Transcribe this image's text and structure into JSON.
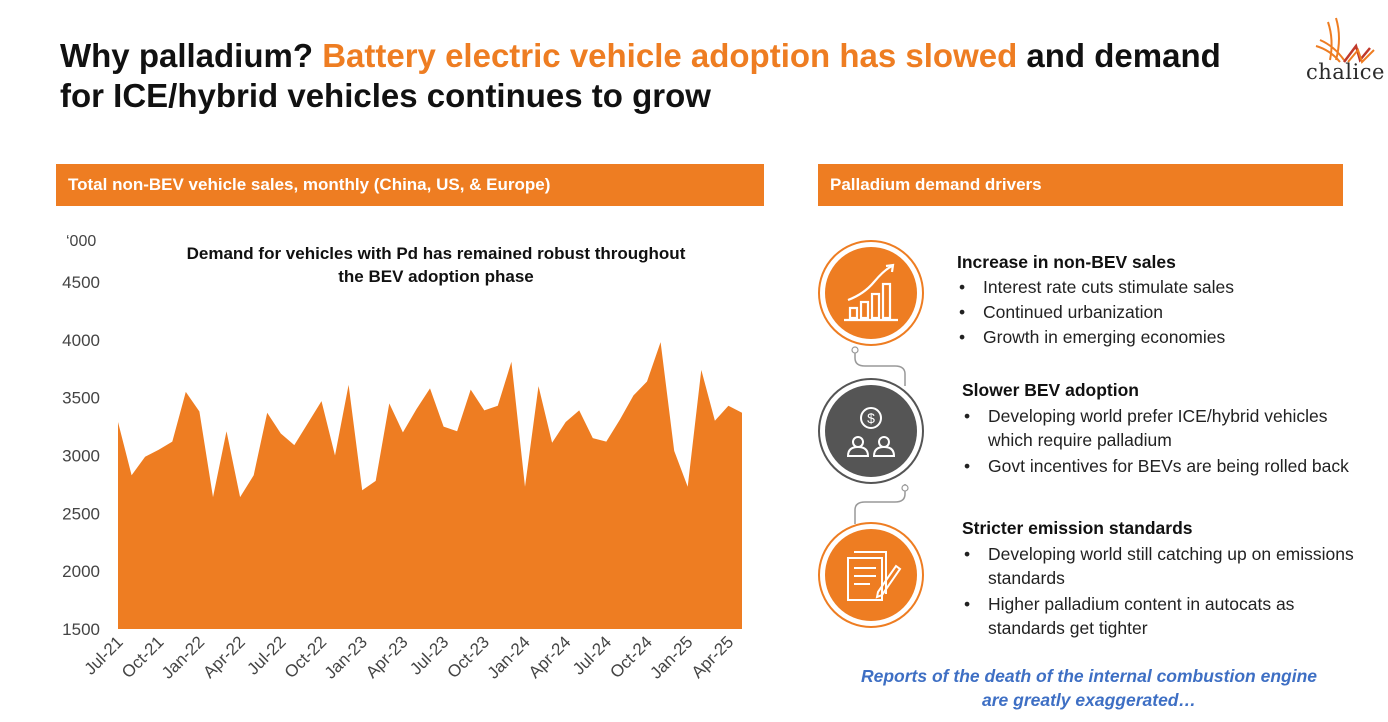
{
  "title": {
    "part1": "Why palladium? ",
    "highlight": "Battery electric vehicle adoption has slowed",
    "part2": " and demand for ICE/hybrid vehicles continues to grow"
  },
  "logo": {
    "text": "chalice"
  },
  "colors": {
    "accent": "#EE7D22",
    "dark_circle": "#555555",
    "tagline": "#3E6FC4"
  },
  "chart_header": "Total non-BEV vehicle sales, monthly (China, US, & Europe)",
  "drivers_header": "Palladium demand drivers",
  "chart_data": {
    "type": "area",
    "title": "Total non-BEV vehicle sales, monthly (China, US, & Europe)",
    "unit_label": "‘000",
    "annotation": "Demand for vehicles with Pd has remained robust throughout the BEV adoption phase",
    "ylim": [
      1500,
      4500
    ],
    "yticks": [
      "1500",
      "2000",
      "2500",
      "3000",
      "3500",
      "4000",
      "4500"
    ],
    "xtick_labels": [
      "Jul-21",
      "Oct-21",
      "Jan-22",
      "Apr-22",
      "Jul-22",
      "Oct-22",
      "Jan-23",
      "Apr-23",
      "Jul-23",
      "Oct-23",
      "Jan-24",
      "Apr-24",
      "Jul-24",
      "Oct-24",
      "Jan-25",
      "Apr-25"
    ],
    "xtick_every": 3,
    "grid": false,
    "legend": "none",
    "series": [
      {
        "name": "Non-BEV vehicle sales",
        "start": "Jul-21",
        "values": [
          3290,
          2830,
          2990,
          3050,
          3120,
          3550,
          3380,
          2640,
          3210,
          2640,
          2830,
          3370,
          3190,
          3090,
          3280,
          3470,
          3000,
          3610,
          2700,
          2780,
          3450,
          3200,
          3400,
          3580,
          3250,
          3210,
          3570,
          3390,
          3430,
          3810,
          2730,
          3600,
          3110,
          3290,
          3390,
          3150,
          3120,
          3310,
          3520,
          3640,
          3980,
          3040,
          2730,
          3740,
          3300,
          3430,
          3370
        ]
      }
    ]
  },
  "drivers": [
    {
      "icon": "growth-chart-icon",
      "heading": "Increase in non-BEV sales",
      "bullets": [
        "Interest rate cuts stimulate sales",
        "Continued urbanization",
        "Growth in emerging economies"
      ]
    },
    {
      "icon": "people-money-icon",
      "heading": "Slower BEV adoption",
      "bullets": [
        "Developing world prefer ICE/hybrid vehicles which require palladium",
        "Govt incentives for BEVs are being rolled back"
      ]
    },
    {
      "icon": "documents-pen-icon",
      "heading": "Stricter emission standards",
      "bullets": [
        "Developing world still catching up on emissions standards",
        "Higher palladium content in autocats as standards get tighter"
      ]
    }
  ],
  "tagline": "Reports of the death of the internal combustion engine are greatly exaggerated…"
}
